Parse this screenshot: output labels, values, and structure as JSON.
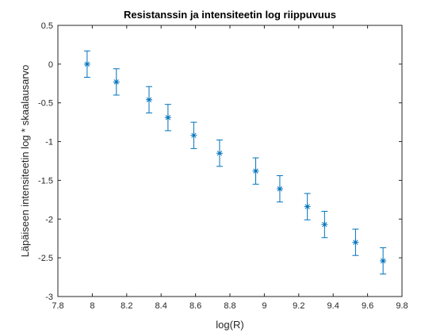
{
  "colors": {
    "series": "#0072BD",
    "axis": "#262626",
    "background": "#ffffff"
  },
  "chart_data": {
    "type": "scatter",
    "title": "Resistanssin ja intensiteetin log riippuvuus",
    "xlabel": "log(R)",
    "ylabel": "Läpäiseen intensiteetin log * skaalausarvo",
    "xlim": [
      7.8,
      9.8
    ],
    "ylim": [
      -3,
      0.5
    ],
    "xticks": [
      7.8,
      8,
      8.2,
      8.4,
      8.6,
      8.8,
      9,
      9.2,
      9.4,
      9.6,
      9.8
    ],
    "xtick_labels": [
      "7.8",
      "8",
      "8.2",
      "8.4",
      "8.6",
      "8.8",
      "9",
      "9.2",
      "9.4",
      "9.6",
      "9.8"
    ],
    "yticks": [
      0.5,
      0,
      -0.5,
      -1,
      -1.5,
      -2,
      -2.5,
      -3
    ],
    "ytick_labels": [
      "0.5",
      "0",
      "-0.5",
      "-1",
      "-1.5",
      "-2",
      "-2.5",
      "-3"
    ],
    "grid": false,
    "marker": "asterisk",
    "series": [
      {
        "x": [
          7.97,
          8.14,
          8.33,
          8.44,
          8.59,
          8.74,
          8.95,
          9.09,
          9.25,
          9.35,
          9.53,
          9.69
        ],
        "y": [
          0.0,
          -0.23,
          -0.46,
          -0.69,
          -0.92,
          -1.15,
          -1.38,
          -1.61,
          -1.84,
          -2.07,
          -2.3,
          -2.54
        ],
        "err": [
          0.17,
          0.17,
          0.17,
          0.17,
          0.17,
          0.17,
          0.17,
          0.17,
          0.17,
          0.17,
          0.17,
          0.17
        ]
      }
    ]
  }
}
